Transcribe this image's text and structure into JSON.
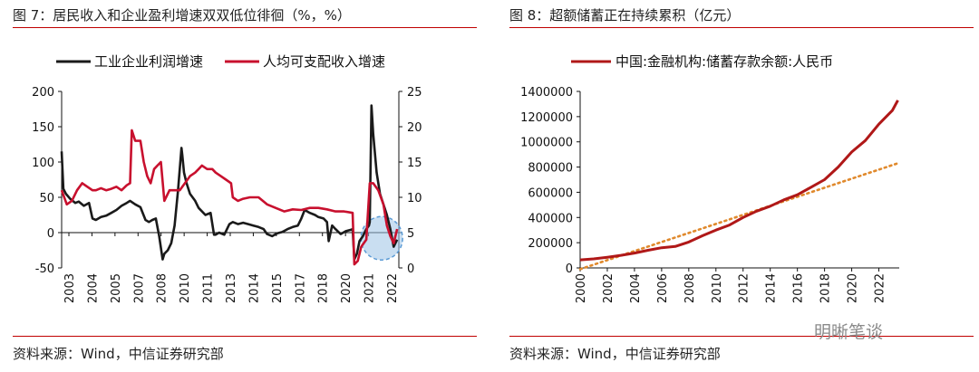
{
  "left": {
    "title": "图 7：居民收入和企业盈利增速双双低位徘徊（%，%）",
    "source": "资料来源：Wind，中信证券研究部",
    "legend": [
      "工业企业利润增速",
      "人均可支配收入增速"
    ]
  },
  "right": {
    "title": "图 8：超额储蓄正在持续累积（亿元）",
    "source": "资料来源：Wind，中信证券研究部",
    "legend": [
      "中国:金融机构:储蓄存款余额:人民币"
    ]
  },
  "watermark": "明晰笔谈",
  "colors": {
    "black_series": "#1a1a1a",
    "red_series": "#c8102e",
    "trend": "#e0892c",
    "rule": "#c00000",
    "highlight": "#9dc3e6"
  },
  "chart_data": [
    {
      "type": "line",
      "x_tick_labels": [
        "2003",
        "2004",
        "2005",
        "2007",
        "2008",
        "2010",
        "2011",
        "2013",
        "2014",
        "2015",
        "2017",
        "2018",
        "2020",
        "2021",
        "2022"
      ],
      "y_left_ticks": [
        -50,
        0,
        50,
        100,
        150,
        200
      ],
      "y_right_ticks": [
        0,
        5,
        10,
        15,
        20,
        25
      ],
      "ylim_left": [
        -50,
        200
      ],
      "ylim_right": [
        0,
        25
      ],
      "xlim": [
        2003,
        2022.7
      ],
      "series": [
        {
          "name": "工业企业利润增速",
          "axis": "left",
          "color": "#1a1a1a",
          "x": [
            2003.0,
            2003.1,
            2003.25,
            2003.5,
            2003.8,
            2004.0,
            2004.3,
            2004.6,
            2004.8,
            2005.0,
            2005.3,
            2005.6,
            2005.9,
            2006.2,
            2006.5,
            2006.8,
            2007.0,
            2007.3,
            2007.6,
            2007.9,
            2008.1,
            2008.3,
            2008.5,
            2008.7,
            2008.9,
            2009.0,
            2009.2,
            2009.4,
            2009.6,
            2009.8,
            2010.0,
            2010.05,
            2010.15,
            2010.3,
            2010.5,
            2010.8,
            2011.0,
            2011.4,
            2011.7,
            2011.9,
            2012.0,
            2012.2,
            2012.5,
            2012.8,
            2013.0,
            2013.3,
            2013.6,
            2013.9,
            2014.2,
            2014.5,
            2014.8,
            2015.0,
            2015.3,
            2015.6,
            2015.9,
            2016.2,
            2016.5,
            2016.8,
            2017.0,
            2017.2,
            2017.5,
            2017.8,
            2018.0,
            2018.3,
            2018.5,
            2018.6,
            2018.8,
            2019.0,
            2019.3,
            2019.6,
            2019.9,
            2020.0,
            2020.1,
            2020.25,
            2020.4,
            2020.6,
            2020.8,
            2020.95,
            2021.0,
            2021.1,
            2021.2,
            2021.4,
            2021.6,
            2021.8,
            2022.0,
            2022.2,
            2022.4,
            2022.6
          ],
          "y": [
            115,
            62,
            55,
            48,
            42,
            44,
            38,
            42,
            20,
            18,
            22,
            24,
            28,
            32,
            38,
            42,
            45,
            40,
            36,
            18,
            15,
            18,
            20,
            -5,
            -38,
            -30,
            -25,
            -15,
            10,
            60,
            120,
            110,
            85,
            70,
            55,
            45,
            35,
            25,
            28,
            -3,
            -3,
            0,
            -3,
            12,
            15,
            12,
            14,
            12,
            10,
            8,
            5,
            -2,
            -5,
            -1,
            1,
            5,
            8,
            10,
            20,
            32,
            28,
            25,
            22,
            20,
            15,
            -12,
            10,
            5,
            -2,
            2,
            4,
            5,
            -38,
            -30,
            -12,
            -5,
            5,
            10,
            15,
            180,
            140,
            85,
            55,
            40,
            25,
            5,
            -20,
            -10
          ]
        },
        {
          "name": "人均可支配收入增速",
          "axis": "right",
          "color": "#c8102e",
          "x": [
            2003.0,
            2003.3,
            2003.6,
            2003.9,
            2004.2,
            2004.5,
            2004.8,
            2005.0,
            2005.3,
            2005.6,
            2005.9,
            2006.2,
            2006.5,
            2006.8,
            2007.0,
            2007.1,
            2007.3,
            2007.6,
            2007.8,
            2008.0,
            2008.2,
            2008.4,
            2008.6,
            2008.8,
            2009.0,
            2009.3,
            2009.6,
            2009.9,
            2010.2,
            2010.5,
            2010.8,
            2011.0,
            2011.2,
            2011.5,
            2011.8,
            2012.0,
            2012.3,
            2012.6,
            2012.9,
            2013.0,
            2013.3,
            2013.6,
            2014.0,
            2014.5,
            2015.0,
            2015.5,
            2016.0,
            2016.5,
            2017.0,
            2017.5,
            2018.0,
            2018.5,
            2019.0,
            2019.5,
            2020.0,
            2020.1,
            2020.3,
            2020.5,
            2020.8,
            2021.0,
            2021.2,
            2021.5,
            2021.8,
            2022.0,
            2022.2,
            2022.4,
            2022.6
          ],
          "y": [
            11,
            9,
            9.5,
            11,
            12,
            11.5,
            11,
            11,
            11.3,
            11,
            11.2,
            11.5,
            11,
            11.7,
            12,
            19.5,
            18,
            18,
            15,
            13,
            12,
            14,
            14.5,
            15,
            9.5,
            11,
            11,
            11,
            12,
            13,
            13.5,
            14,
            14.5,
            14,
            14,
            13.5,
            13,
            12.5,
            12,
            10,
            9.5,
            9.8,
            10,
            10,
            9,
            8.5,
            8,
            8.3,
            8.2,
            8.5,
            8.5,
            8.3,
            8,
            8,
            7.8,
            0.5,
            1,
            3,
            4,
            12,
            12,
            11,
            9,
            6,
            4.5,
            3.5,
            5.5
          ]
        }
      ]
    },
    {
      "type": "line",
      "x_tick_labels": [
        "2000",
        "2002",
        "2004",
        "2006",
        "2008",
        "2010",
        "2012",
        "2014",
        "2016",
        "2018",
        "2020",
        "2022"
      ],
      "y_ticks": [
        0,
        200000,
        400000,
        600000,
        800000,
        1000000,
        1200000,
        1400000
      ],
      "ylim": [
        0,
        1400000
      ],
      "xlim": [
        2000,
        2023.5
      ],
      "series": [
        {
          "name": "中国:金融机构:储蓄存款余额:人民币",
          "color": "#b01818",
          "x": [
            2000,
            2001,
            2002,
            2003,
            2004,
            2005,
            2006,
            2007,
            2008,
            2009,
            2010,
            2011,
            2012,
            2013,
            2014,
            2015,
            2016,
            2017,
            2018,
            2019,
            2020,
            2021,
            2022,
            2023,
            2023.4
          ],
          "y": [
            64000,
            72000,
            85000,
            100000,
            118000,
            140000,
            160000,
            170000,
            205000,
            255000,
            300000,
            340000,
            400000,
            450000,
            490000,
            540000,
            580000,
            640000,
            700000,
            800000,
            920000,
            1010000,
            1140000,
            1250000,
            1330000
          ]
        }
      ],
      "trend_line": {
        "x": [
          2000,
          2023.4
        ],
        "y": [
          -10000,
          830000
        ],
        "color": "#e0892c",
        "style": "dotted"
      }
    }
  ]
}
